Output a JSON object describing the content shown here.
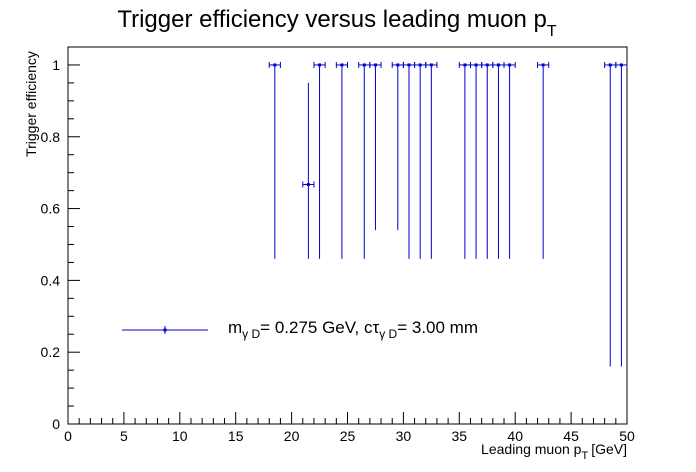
{
  "chart_data": {
    "type": "scatter",
    "title": "Trigger efficiency versus leading muon p",
    "title_subscript": "T",
    "xlabel": "Leading muon p",
    "xlabel_subscript": "T",
    "xlabel_unit": "[GeV]",
    "ylabel": "Trigger efficiency",
    "xlim": [
      0,
      50
    ],
    "ylim": [
      0,
      1.05
    ],
    "grid": false,
    "legend_position": "lower-left",
    "x_ticks": [
      "0",
      "5",
      "10",
      "15",
      "20",
      "25",
      "30",
      "35",
      "40",
      "45",
      "50"
    ],
    "y_ticks": [
      "0",
      "0.2",
      "0.4",
      "0.6",
      "0.8",
      "1"
    ],
    "series": [
      {
        "name": "m_{γ D}= 0.275 GeV, cτ_{γ D}= 3.00 mm",
        "color": "#0000cc",
        "points": [
          {
            "x": 18.5,
            "y": 1.0,
            "y_low": 0.46,
            "y_high": 1.0
          },
          {
            "x": 21.5,
            "y": 0.667,
            "y_low": 0.46,
            "y_high": 0.95
          },
          {
            "x": 22.5,
            "y": 1.0,
            "y_low": 0.46,
            "y_high": 1.0
          },
          {
            "x": 24.5,
            "y": 1.0,
            "y_low": 0.46,
            "y_high": 1.0
          },
          {
            "x": 26.5,
            "y": 1.0,
            "y_low": 0.46,
            "y_high": 1.0
          },
          {
            "x": 27.5,
            "y": 1.0,
            "y_low": 0.54,
            "y_high": 1.0
          },
          {
            "x": 29.5,
            "y": 1.0,
            "y_low": 0.54,
            "y_high": 1.0
          },
          {
            "x": 30.5,
            "y": 1.0,
            "y_low": 0.46,
            "y_high": 1.0
          },
          {
            "x": 31.5,
            "y": 1.0,
            "y_low": 0.46,
            "y_high": 1.0
          },
          {
            "x": 32.5,
            "y": 1.0,
            "y_low": 0.46,
            "y_high": 1.0
          },
          {
            "x": 35.5,
            "y": 1.0,
            "y_low": 0.46,
            "y_high": 1.0
          },
          {
            "x": 36.5,
            "y": 1.0,
            "y_low": 0.46,
            "y_high": 1.0
          },
          {
            "x": 37.5,
            "y": 1.0,
            "y_low": 0.46,
            "y_high": 1.0
          },
          {
            "x": 38.5,
            "y": 1.0,
            "y_low": 0.46,
            "y_high": 1.0
          },
          {
            "x": 39.5,
            "y": 1.0,
            "y_low": 0.46,
            "y_high": 1.0
          },
          {
            "x": 42.5,
            "y": 1.0,
            "y_low": 0.46,
            "y_high": 1.0
          },
          {
            "x": 48.5,
            "y": 1.0,
            "y_low": 0.16,
            "y_high": 1.0
          },
          {
            "x": 49.5,
            "y": 1.0,
            "y_low": 0.16,
            "y_high": 1.0
          }
        ],
        "x_error": 0.5
      }
    ],
    "legend": {
      "m_text": "m",
      "m_sub": "γ D",
      "mid_text": "= 0.275 GeV, cτ",
      "tau_sub": "γ D",
      "end_text": "= 3.00 mm"
    }
  }
}
